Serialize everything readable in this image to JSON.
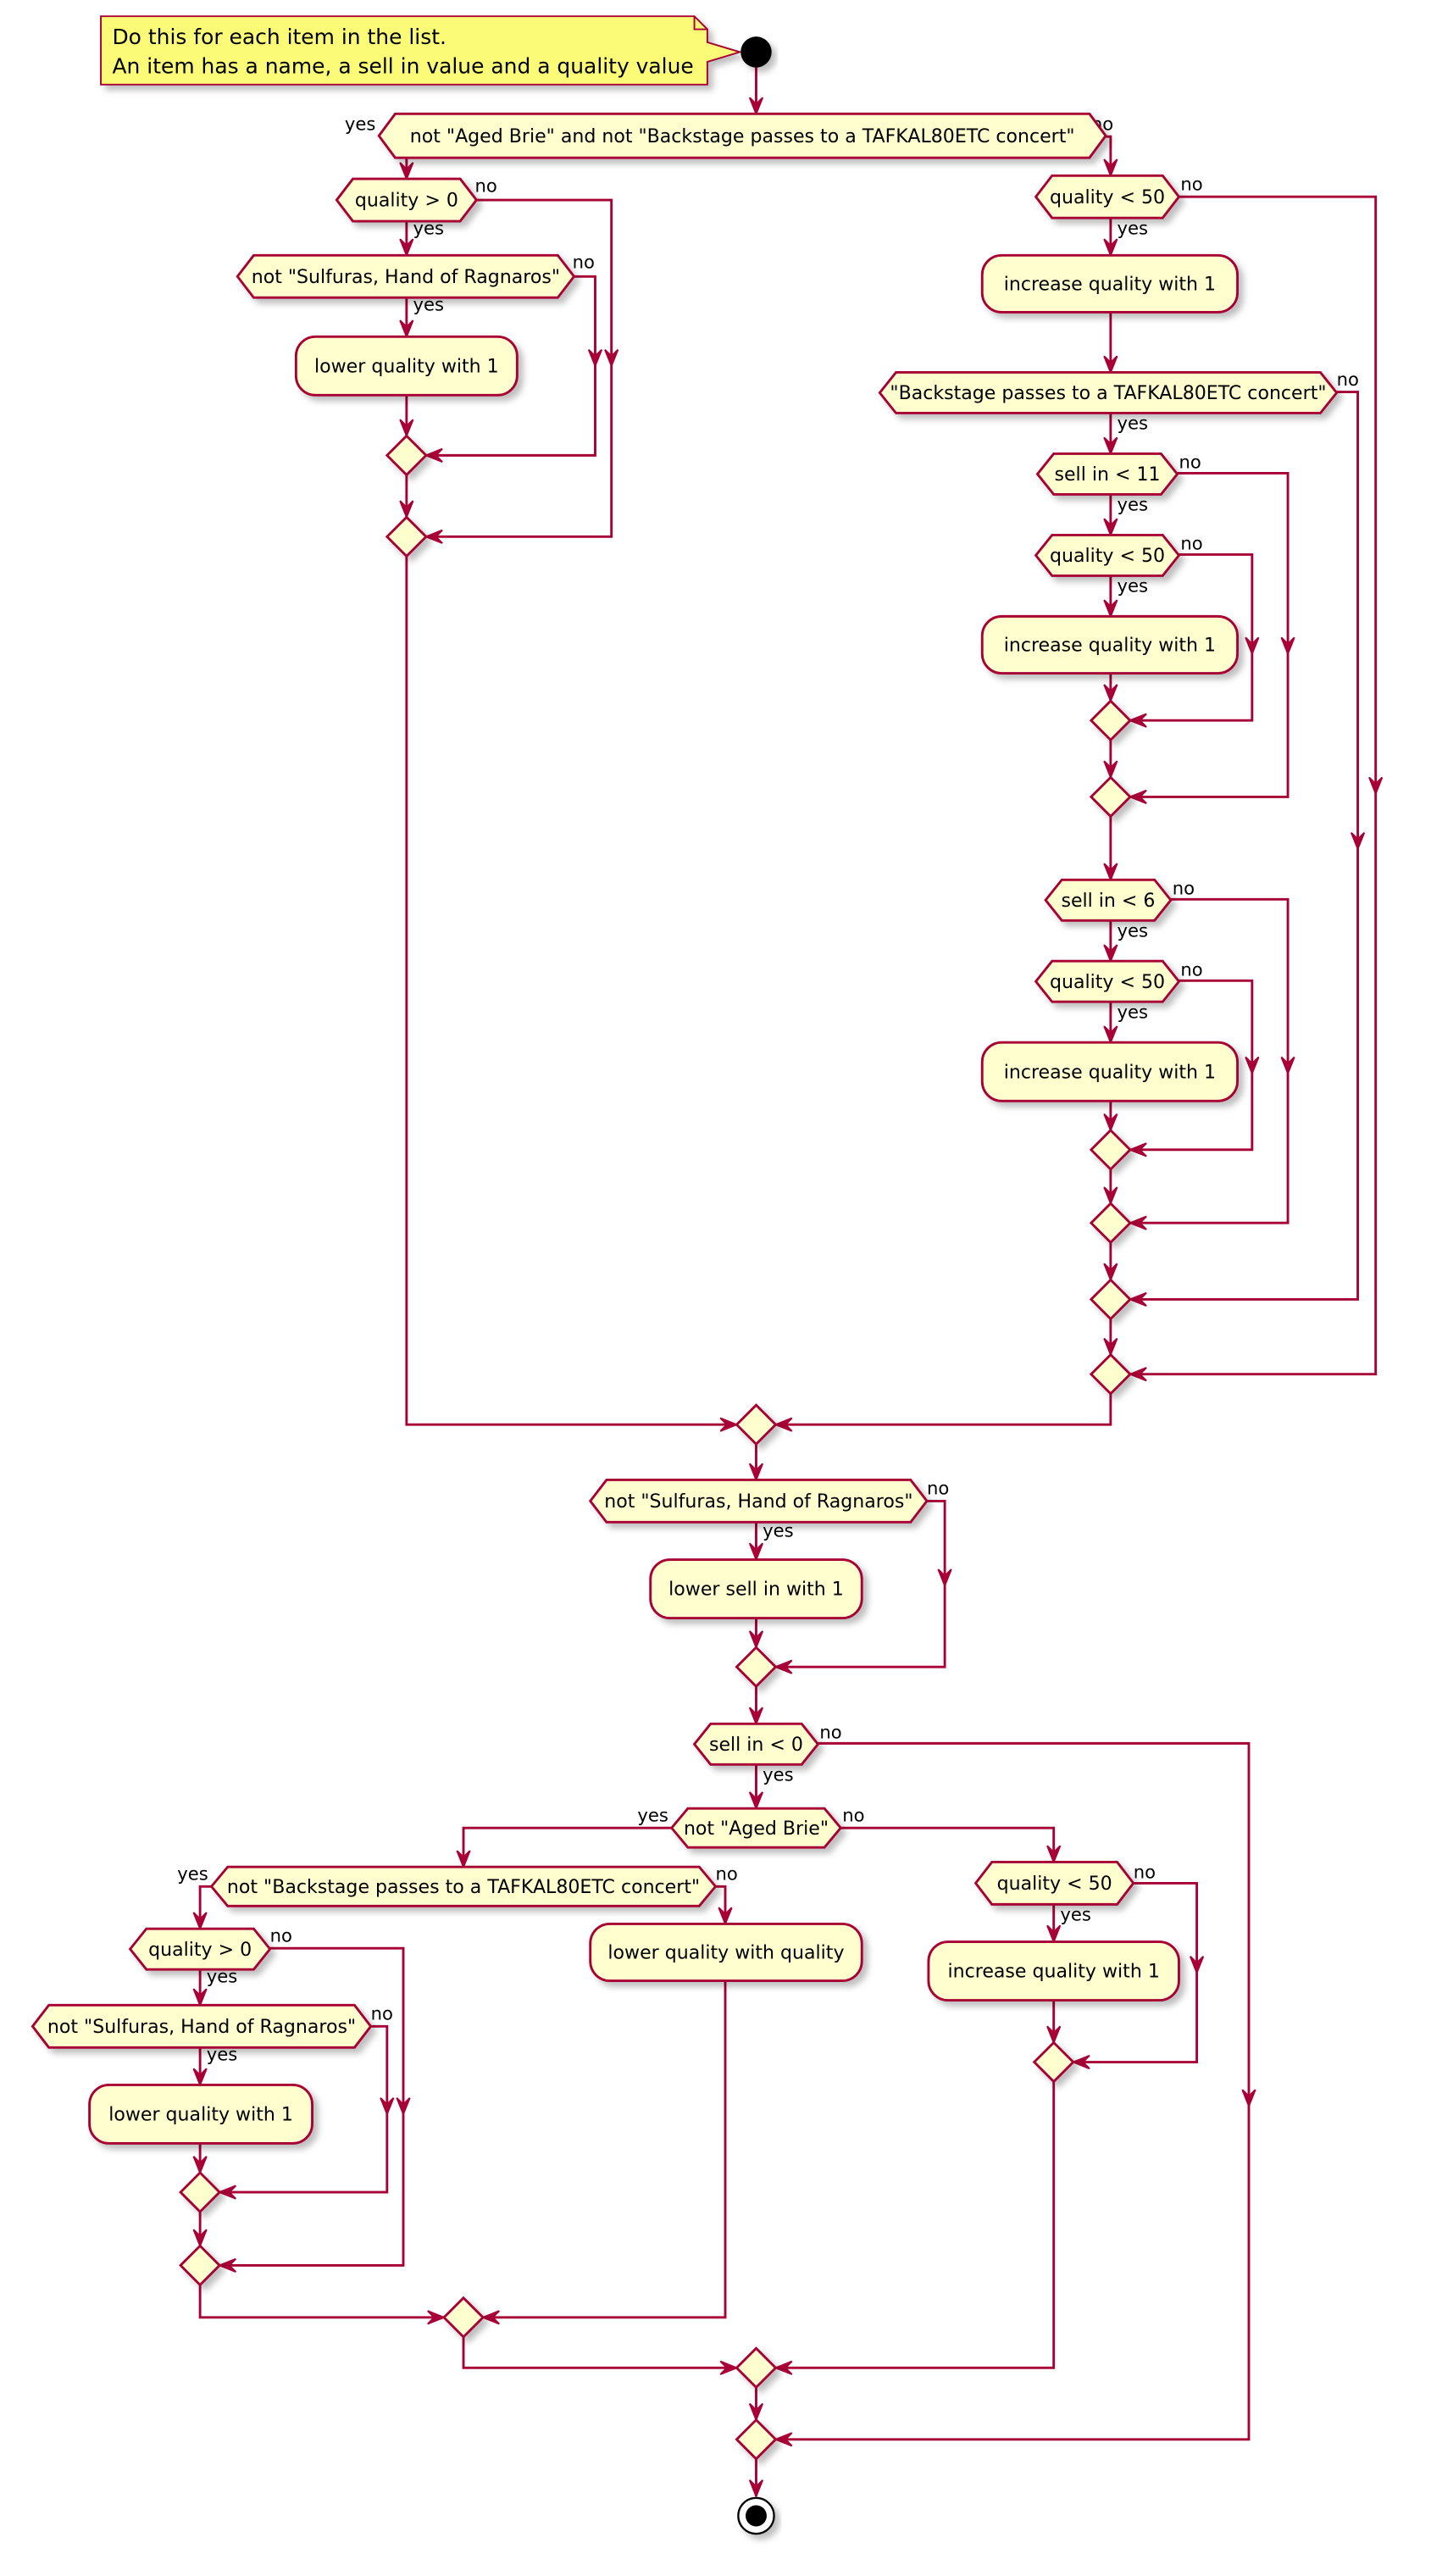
{
  "note": {
    "lines": [
      "Do this for each item in the list.",
      "An item has a name, a sell in value and a quality value"
    ]
  },
  "branch": {
    "yes": "yes",
    "no": "no"
  },
  "nodes": {
    "d1": "not \"Aged Brie\" and not \"Backstage passes to a TAFKAL80ETC concert\"",
    "qgt0_a": "quality > 0",
    "sulf_a": "not \"Sulfuras, Hand of Ragnaros\"",
    "lower_a": "lower quality with 1",
    "qlt50_a": "quality < 50",
    "inc_a": "increase quality with 1",
    "backstage": "\"Backstage passes to a TAFKAL80ETC concert\"",
    "sellin_lt11": "sell in < 11",
    "qlt50_b": "quality < 50",
    "inc_b": "increase quality with 1",
    "sellin_lt6": "sell in < 6",
    "qlt50_c": "quality < 50",
    "inc_c": "increase quality with 1",
    "sulf_b": "not \"Sulfuras, Hand of Ragnaros\"",
    "lower_sellin": "lower sell in with 1",
    "sellin_lt0": "sell in < 0",
    "not_brie": "not \"Aged Brie\"",
    "not_backstage": "not \"Backstage passes to a TAFKAL80ETC concert\"",
    "qgt0_b": "quality > 0",
    "sulf_c": "not \"Sulfuras, Hand of Ragnaros\"",
    "lower_b": "lower quality with 1",
    "lower_q_q": "lower quality with quality",
    "qlt50_d": "quality < 50",
    "inc_d": "increase quality with 1"
  },
  "colors": {
    "border": "#A80036",
    "fill": "#FEFECE",
    "note_fill": "#FBFB77",
    "start": "#000000"
  }
}
